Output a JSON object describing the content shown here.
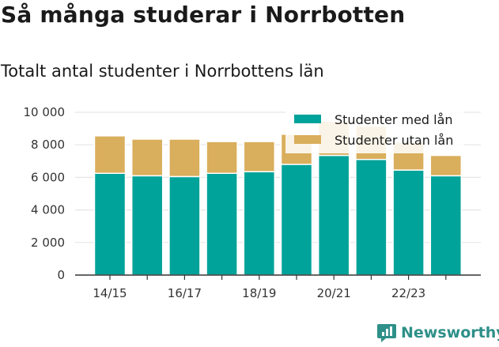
{
  "title": "Så många studerar i Norrbotten",
  "subtitle": "Totalt antal studenter i Norrbottens län",
  "brand": {
    "name": "Newsworthy",
    "icon": "newsworthy-logo-icon"
  },
  "colors": {
    "with_loan": "#00a39a",
    "without_loan": "#d9ae5c",
    "grid": "#e6e6e6",
    "axis": "#333333",
    "brand": "#2e9088"
  },
  "chart_data": {
    "type": "bar",
    "stacked": true,
    "categories": [
      "14/15",
      "15/16",
      "16/17",
      "17/18",
      "18/19",
      "19/20",
      "20/21",
      "21/22",
      "22/23",
      "23/24"
    ],
    "x_tick_labels": [
      "14/15",
      "16/17",
      "18/19",
      "20/21",
      "22/23"
    ],
    "series": [
      {
        "name": "Studenter med lån",
        "values": [
          6250,
          6100,
          6050,
          6250,
          6350,
          6800,
          7350,
          7100,
          6450,
          6100
        ]
      },
      {
        "name": "Studenter utan lån",
        "values": [
          2300,
          2250,
          2300,
          1950,
          1850,
          1850,
          2100,
          2050,
          1700,
          1250
        ]
      }
    ],
    "ylim": [
      0,
      10000
    ],
    "y_ticks": [
      0,
      2000,
      4000,
      6000,
      8000,
      10000
    ],
    "y_tick_labels": [
      "0",
      "2 000",
      "4 000",
      "6 000",
      "8 000",
      "10 000"
    ],
    "grid": true,
    "legend_position": "top-right"
  }
}
